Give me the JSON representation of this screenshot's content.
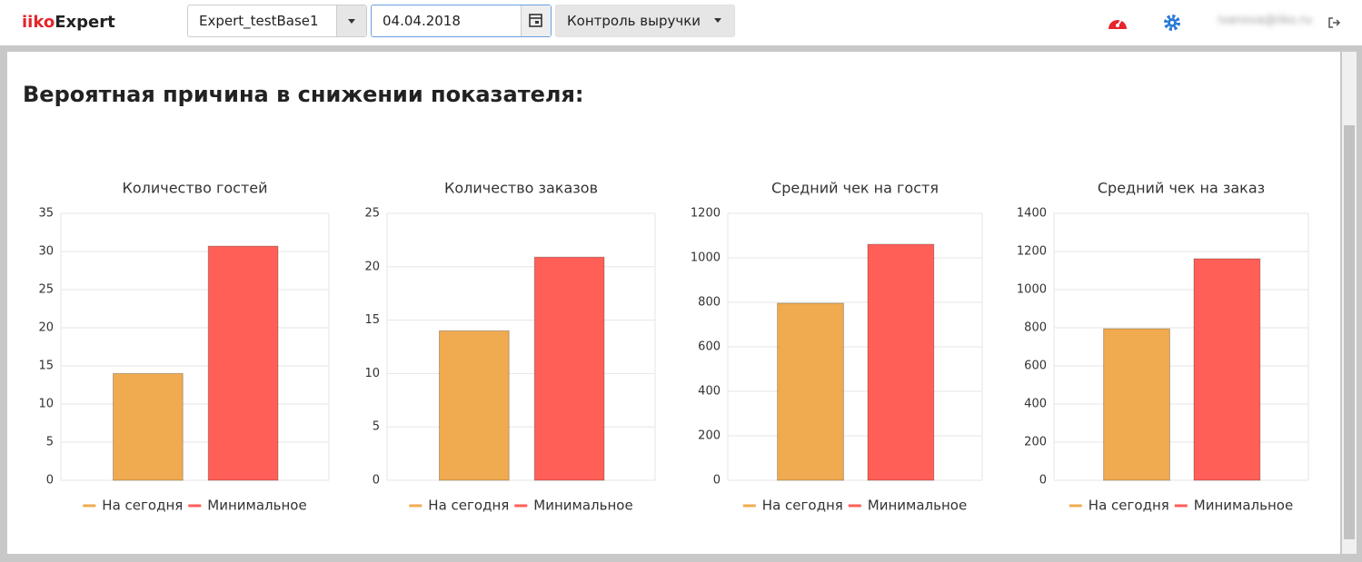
{
  "header": {
    "logo_brand": "iiko",
    "logo_product": "Expert",
    "database": "Expert_testBase1",
    "date": "04.04.2018",
    "report": "Контроль выручки",
    "user": "ivanova@iiko.ru"
  },
  "page": {
    "heading": "Вероятная причина в снижении показателя:"
  },
  "chart_data": [
    {
      "type": "bar",
      "title": "Количество гостей",
      "categories": [
        null
      ],
      "ylim": [
        0,
        35
      ],
      "yticks": [
        0,
        5,
        10,
        15,
        20,
        25,
        30,
        35
      ],
      "grid": true,
      "series": [
        {
          "name": "На сегодня",
          "color": "#f0ab50",
          "values": [
            14
          ]
        },
        {
          "name": "Минимальное",
          "color": "#ff5f57",
          "values": [
            30.7
          ]
        }
      ]
    },
    {
      "type": "bar",
      "title": "Количество заказов",
      "categories": [
        null
      ],
      "ylim": [
        0,
        25
      ],
      "yticks": [
        0,
        5,
        10,
        15,
        20,
        25
      ],
      "grid": true,
      "series": [
        {
          "name": "На сегодня",
          "color": "#f0ab50",
          "values": [
            14
          ]
        },
        {
          "name": "Минимальное",
          "color": "#ff5f57",
          "values": [
            20.9
          ]
        }
      ]
    },
    {
      "type": "bar",
      "title": "Средний чек на гостя",
      "categories": [
        null
      ],
      "ylim": [
        0,
        1200
      ],
      "yticks": [
        0,
        200,
        400,
        600,
        800,
        1000,
        1200
      ],
      "grid": true,
      "series": [
        {
          "name": "На сегодня",
          "color": "#f0ab50",
          "values": [
            796
          ]
        },
        {
          "name": "Минимальное",
          "color": "#ff5f57",
          "values": [
            1061
          ]
        }
      ]
    },
    {
      "type": "bar",
      "title": "Средний чек на заказ",
      "categories": [
        null
      ],
      "ylim": [
        0,
        1400
      ],
      "yticks": [
        0,
        200,
        400,
        600,
        800,
        1000,
        1200,
        1400
      ],
      "grid": true,
      "series": [
        {
          "name": "На сегодня",
          "color": "#f0ab50",
          "values": [
            795
          ]
        },
        {
          "name": "Минимальное",
          "color": "#ff5f57",
          "values": [
            1162
          ]
        }
      ]
    }
  ]
}
